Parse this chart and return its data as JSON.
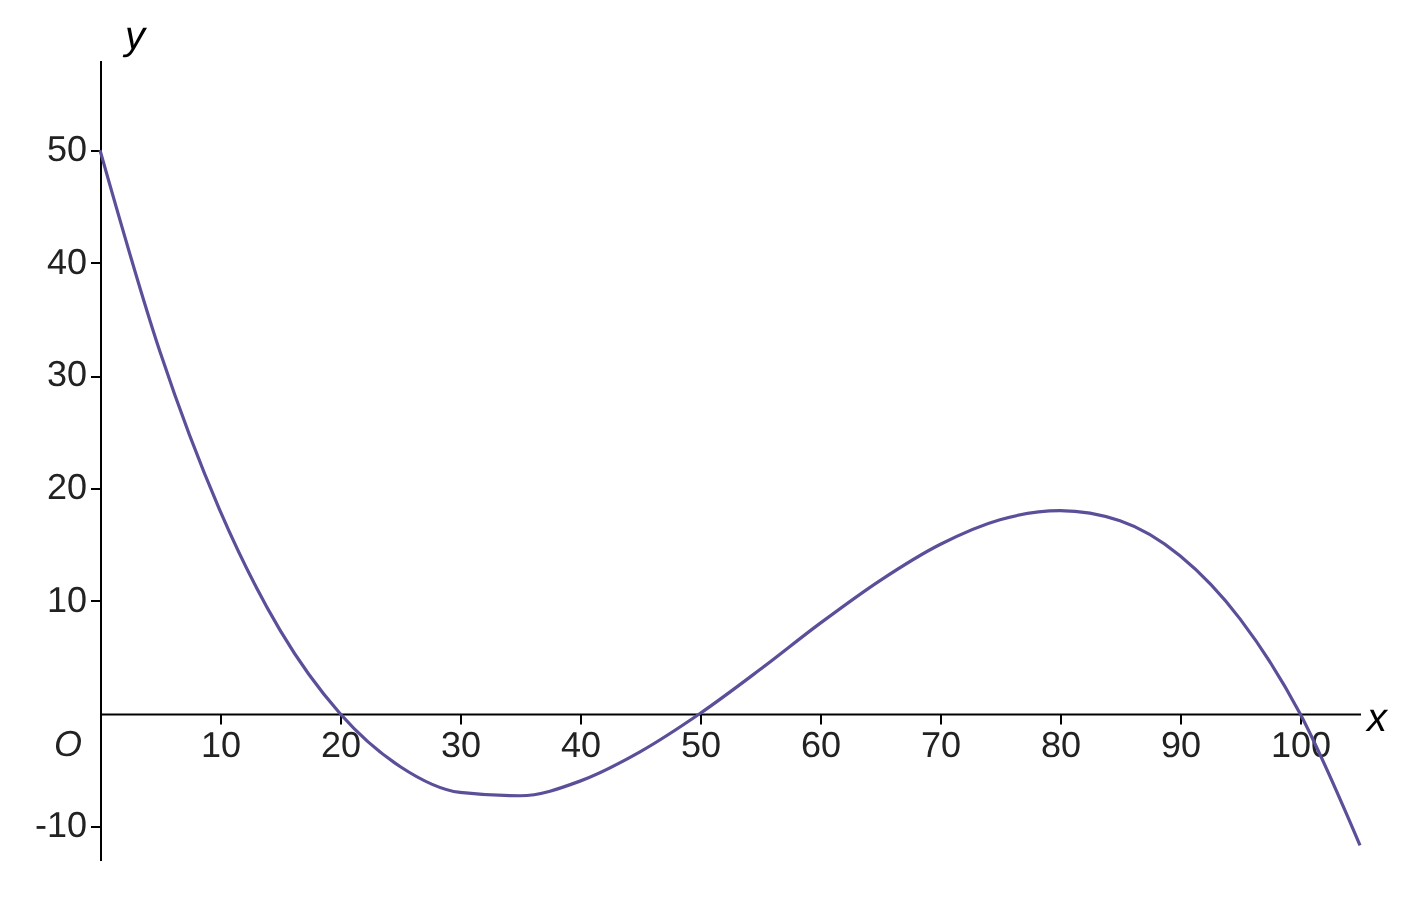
{
  "chart_data": {
    "type": "line",
    "xlabel": "x",
    "ylabel": "y",
    "x": [
      0,
      5,
      10,
      15,
      20,
      25,
      30,
      35,
      40,
      45,
      50,
      55,
      60,
      65,
      70,
      75,
      80,
      85,
      90,
      95,
      100,
      105
    ],
    "series": [
      {
        "color": "#5b4f9a",
        "values": [
          50,
          32.1,
          18,
          7.4,
          0,
          -4.7,
          -7,
          -7.3,
          -6,
          -3.4,
          0,
          3.9,
          8,
          11.8,
          15,
          17.2,
          18,
          17.1,
          14,
          8.4,
          0,
          -11.7
        ]
      }
    ],
    "xlim": [
      0,
      105
    ],
    "ylim": [
      -13,
      58
    ],
    "xticks": [
      10,
      20,
      30,
      40,
      50,
      60,
      70,
      80,
      90,
      100
    ],
    "yticks": [
      -10,
      10,
      20,
      30,
      40,
      50
    ],
    "annotations": [
      "O"
    ],
    "grid": false,
    "marker": "none",
    "line_style": "solid"
  }
}
